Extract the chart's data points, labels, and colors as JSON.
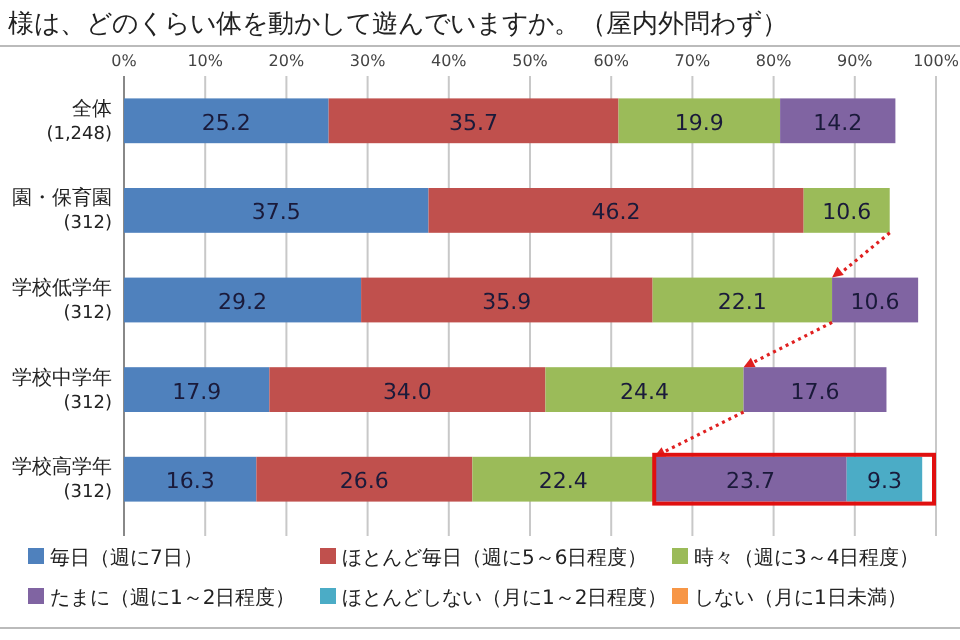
{
  "chart_data": {
    "type": "bar",
    "title": "様は、どのくらい体を動かして遊んでいますか。（屋内外問わず）",
    "orientation": "horizontal",
    "stacked": true,
    "grid": "x",
    "legend": "bottom",
    "categories": [
      "全体\n(1,248)",
      "園・保育園\n(312)",
      "学校低学年\n(312)",
      "学校中学年\n(312)",
      "学校高学年\n(312)"
    ],
    "xlim": [
      0,
      100
    ],
    "xticks": [
      {
        "value": 0,
        "label": "0%"
      },
      {
        "value": 10,
        "label": "10%"
      },
      {
        "value": 20,
        "label": "20%"
      },
      {
        "value": 30,
        "label": "30%"
      },
      {
        "value": 40,
        "label": "40%"
      },
      {
        "value": 50,
        "label": "50%"
      },
      {
        "value": 60,
        "label": "60%"
      },
      {
        "value": 70,
        "label": "70%"
      },
      {
        "value": 80,
        "label": "80%"
      },
      {
        "value": 90,
        "label": "90%"
      },
      {
        "value": 100,
        "label": "100%"
      }
    ],
    "series": [
      {
        "name": "毎日（週に7日）",
        "color": "#4f81bd",
        "values": [
          25.2,
          37.5,
          29.2,
          17.9,
          16.3
        ],
        "value_labels": [
          "25.2",
          "37.5",
          "29.2",
          "17.9",
          "16.3"
        ]
      },
      {
        "name": "ほとんど毎日（週に5～6日程度）",
        "color": "#c0504d",
        "values": [
          35.7,
          46.2,
          35.9,
          34.0,
          26.6
        ],
        "value_labels": [
          "35.7",
          "46.2",
          "35.9",
          "34.0",
          "26.6"
        ]
      },
      {
        "name": "時々（週に3～4日程度）",
        "color": "#9bbb59",
        "values": [
          19.9,
          10.6,
          22.1,
          24.4,
          22.4
        ],
        "value_labels": [
          "19.9",
          "10.6",
          "22.1",
          "24.4",
          "22.4"
        ]
      },
      {
        "name": "たまに（週に1～2日程度）",
        "color": "#8064a2",
        "values": [
          14.2,
          null,
          10.6,
          17.6,
          23.7
        ],
        "value_labels": [
          "14.2",
          null,
          "10.6",
          "17.6",
          "23.7"
        ]
      },
      {
        "name": "ほとんどしない（月に1～2日程度）",
        "color": "#4bacc6",
        "values": [
          null,
          null,
          null,
          null,
          9.3
        ],
        "value_labels": [
          null,
          null,
          null,
          null,
          "9.3"
        ]
      },
      {
        "name": "しない（月に1日未満）",
        "color": "#f79646",
        "values": [
          null,
          null,
          null,
          null,
          null
        ]
      }
    ]
  }
}
